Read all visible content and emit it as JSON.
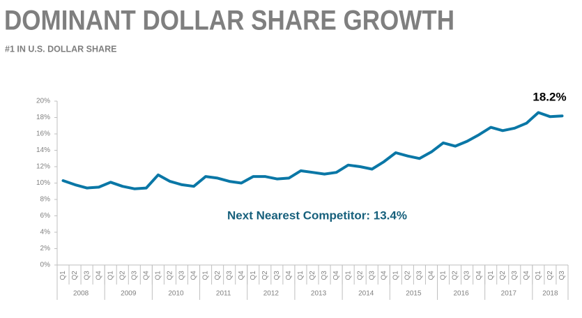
{
  "chart_data": {
    "type": "line",
    "title": "DOMINANT DOLLAR SHARE GROWTH",
    "subtitle": "#1 IN U.S. DOLLAR SHARE",
    "annotation": "Next Nearest Competitor: 13.4%",
    "end_label": "18.2%",
    "color": "#0a77a6",
    "categories": [
      "Q1",
      "Q2",
      "Q3",
      "Q4",
      "Q1",
      "Q2",
      "Q3",
      "Q4",
      "Q1",
      "Q2",
      "Q3",
      "Q4",
      "Q1",
      "Q2",
      "Q3",
      "Q4",
      "Q1",
      "Q2",
      "Q3",
      "Q4",
      "Q1",
      "Q2",
      "Q3",
      "Q4",
      "Q1",
      "Q2",
      "Q3",
      "Q4",
      "Q1",
      "Q2",
      "Q3",
      "Q4",
      "Q1",
      "Q2",
      "Q3",
      "Q4",
      "Q1",
      "Q2",
      "Q3",
      "Q4",
      "Q1",
      "Q2",
      "Q3"
    ],
    "years": [
      "2008",
      "2009",
      "2010",
      "2011",
      "2012",
      "2013",
      "2014",
      "2015",
      "2016",
      "2017",
      "2018"
    ],
    "values": [
      10.3,
      9.8,
      9.4,
      9.5,
      10.1,
      9.6,
      9.3,
      9.4,
      11.0,
      10.2,
      9.8,
      9.6,
      10.8,
      10.6,
      10.2,
      10.0,
      10.8,
      10.8,
      10.5,
      10.6,
      11.5,
      11.3,
      11.1,
      11.3,
      12.2,
      12.0,
      11.7,
      12.6,
      13.7,
      13.3,
      13.0,
      13.8,
      14.9,
      14.5,
      15.1,
      15.9,
      16.8,
      16.4,
      16.7,
      17.3,
      18.6,
      18.1,
      18.2
    ],
    "ylim": [
      0,
      20
    ],
    "yticks": [
      {
        "value": 0,
        "label": "0%"
      },
      {
        "value": 2,
        "label": "2%"
      },
      {
        "value": 4,
        "label": "4%"
      },
      {
        "value": 6,
        "label": "6%"
      },
      {
        "value": 8,
        "label": "8%"
      },
      {
        "value": 10,
        "label": "10%"
      },
      {
        "value": 12,
        "label": "12%"
      },
      {
        "value": 14,
        "label": "14%"
      },
      {
        "value": 16,
        "label": "16%"
      },
      {
        "value": 18,
        "label": "18%"
      },
      {
        "value": 20,
        "label": "20%"
      }
    ],
    "grid": false
  }
}
